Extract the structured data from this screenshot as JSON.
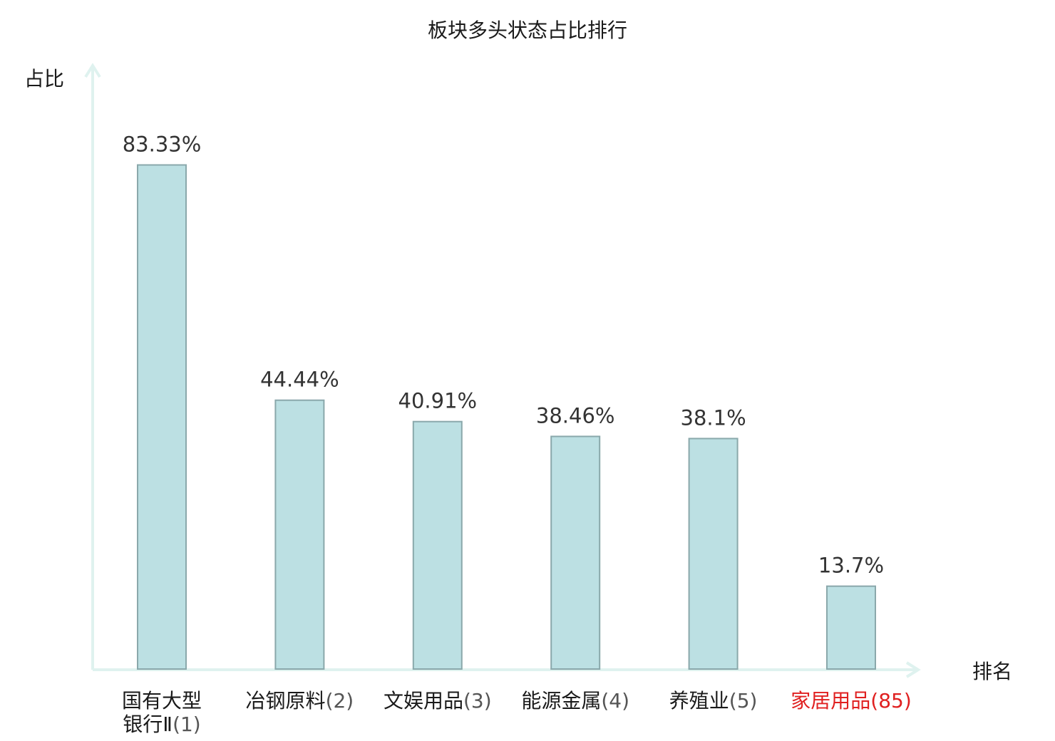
{
  "colors": {
    "bar_fill": "#bce0e3",
    "bar_stroke": "#8aa8ab",
    "axis": "#dff2ef",
    "text": "#1a1a1a",
    "data_label": "#333333",
    "highlight": "#e02020",
    "rank_text": "#555555"
  },
  "chart_data": {
    "type": "bar",
    "title": "板块多头状态占比排行",
    "xlabel": "排名",
    "ylabel": "占比",
    "ylim": [
      0,
      100
    ],
    "grid": false,
    "categories": [
      {
        "name": "国有大型银行Ⅱ",
        "rank": "(1)",
        "highlight": false
      },
      {
        "name": "冶钢原料",
        "rank": "(2)",
        "highlight": false
      },
      {
        "name": "文娱用品",
        "rank": "(3)",
        "highlight": false
      },
      {
        "name": "能源金属",
        "rank": "(4)",
        "highlight": false
      },
      {
        "name": "养殖业",
        "rank": "(5)",
        "highlight": false
      },
      {
        "name": "家居用品",
        "rank": "(85)",
        "highlight": true
      }
    ],
    "values": [
      83.33,
      44.44,
      40.91,
      38.46,
      38.1,
      13.7
    ],
    "value_labels": [
      "83.33%",
      "44.44%",
      "40.91%",
      "38.46%",
      "38.1%",
      "13.7%"
    ]
  }
}
